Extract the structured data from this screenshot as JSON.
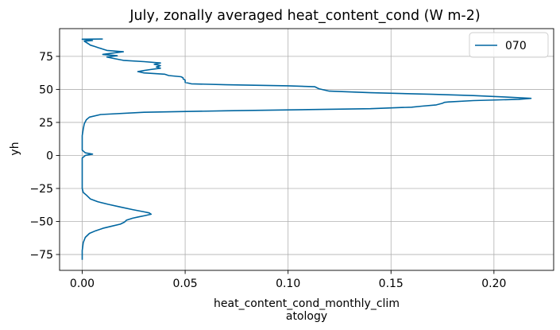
{
  "chart_data": {
    "type": "line",
    "title": "July, zonally averaged heat_content_cond (W m-2)",
    "xlabel_lines": [
      "heat_content_cond_monthly_clim",
      "atology"
    ],
    "ylabel": "yh",
    "xlim": [
      -0.011,
      0.229
    ],
    "ylim": [
      -87,
      96
    ],
    "xticks": [
      0.0,
      0.05,
      0.1,
      0.15,
      0.2
    ],
    "xtick_labels": [
      "0.00",
      "0.05",
      "0.10",
      "0.15",
      "0.20"
    ],
    "yticks": [
      -75,
      -50,
      -25,
      0,
      25,
      50,
      75
    ],
    "ytick_labels": [
      "−75",
      "−50",
      "−25",
      "0",
      "25",
      "50",
      "75"
    ],
    "grid": true,
    "legend_location": "top-right",
    "series": [
      {
        "name": "070",
        "color": "#0066a0",
        "points": [
          [
            0.0,
            -79
          ],
          [
            0.0,
            -72
          ],
          [
            0.0005,
            -66
          ],
          [
            0.0015,
            -62
          ],
          [
            0.0035,
            -59
          ],
          [
            0.0065,
            -57
          ],
          [
            0.0105,
            -55
          ],
          [
            0.0145,
            -53.5
          ],
          [
            0.0185,
            -52
          ],
          [
            0.0205,
            -50.5
          ],
          [
            0.0215,
            -49
          ],
          [
            0.0245,
            -47.5
          ],
          [
            0.0275,
            -46.5
          ],
          [
            0.0305,
            -45.5
          ],
          [
            0.0335,
            -44.5
          ],
          [
            0.0325,
            -43.5
          ],
          [
            0.0295,
            -42.5
          ],
          [
            0.0245,
            -41
          ],
          [
            0.0185,
            -39
          ],
          [
            0.0125,
            -37
          ],
          [
            0.0075,
            -35
          ],
          [
            0.004,
            -33
          ],
          [
            0.002,
            -30
          ],
          [
            0.0005,
            -28
          ],
          [
            0.0,
            -25
          ],
          [
            0.0,
            -10
          ],
          [
            0.0,
            -2
          ],
          [
            0.0015,
            0
          ],
          [
            0.005,
            1
          ],
          [
            0.0015,
            2
          ],
          [
            0.0,
            4
          ],
          [
            0.0,
            15
          ],
          [
            0.0005,
            20
          ],
          [
            0.001,
            24
          ],
          [
            0.002,
            27
          ],
          [
            0.0035,
            29
          ],
          [
            0.009,
            31
          ],
          [
            0.03,
            32.7
          ],
          [
            0.07,
            33.8
          ],
          [
            0.11,
            34.7
          ],
          [
            0.14,
            35.4
          ],
          [
            0.155,
            36.3
          ],
          [
            0.16,
            36.5
          ],
          [
            0.165,
            37.3
          ],
          [
            0.172,
            38.3
          ],
          [
            0.175,
            39.5
          ],
          [
            0.176,
            40.2
          ],
          [
            0.178,
            40.5
          ],
          [
            0.19,
            41.5
          ],
          [
            0.212,
            42.5
          ],
          [
            0.218,
            43.2
          ],
          [
            0.205,
            44.3
          ],
          [
            0.19,
            45.3
          ],
          [
            0.17,
            46.3
          ],
          [
            0.14,
            47.5
          ],
          [
            0.12,
            48.7
          ],
          [
            0.115,
            50.5
          ],
          [
            0.113,
            52
          ],
          [
            0.1,
            52.7
          ],
          [
            0.07,
            53.5
          ],
          [
            0.053,
            54.2
          ],
          [
            0.05,
            55.3
          ],
          [
            0.05,
            56.3
          ],
          [
            0.05,
            57
          ],
          [
            0.049,
            58
          ],
          [
            0.049,
            58.8
          ],
          [
            0.048,
            59.6
          ],
          [
            0.042,
            60.5
          ],
          [
            0.04,
            61.5
          ],
          [
            0.03,
            62.5
          ],
          [
            0.027,
            63.5
          ],
          [
            0.03,
            64.3
          ],
          [
            0.033,
            65
          ],
          [
            0.038,
            66
          ],
          [
            0.036,
            67
          ],
          [
            0.038,
            68
          ],
          [
            0.035,
            69
          ],
          [
            0.038,
            70
          ],
          [
            0.03,
            71
          ],
          [
            0.02,
            72
          ],
          [
            0.015,
            73.5
          ],
          [
            0.012,
            74.5
          ],
          [
            0.017,
            75.5
          ],
          [
            0.01,
            76.5
          ],
          [
            0.015,
            77.5
          ],
          [
            0.02,
            78.5
          ],
          [
            0.012,
            79.5
          ],
          [
            0.01,
            80.5
          ],
          [
            0.008,
            81.5
          ],
          [
            0.006,
            82.5
          ],
          [
            0.004,
            83.5
          ],
          [
            0.003,
            84.5
          ],
          [
            0.002,
            85.5
          ],
          [
            0.001,
            86.5
          ],
          [
            0.005,
            87
          ],
          [
            0.002,
            87.5
          ],
          [
            0.0,
            88
          ],
          [
            0.01,
            88.1
          ]
        ]
      }
    ]
  }
}
